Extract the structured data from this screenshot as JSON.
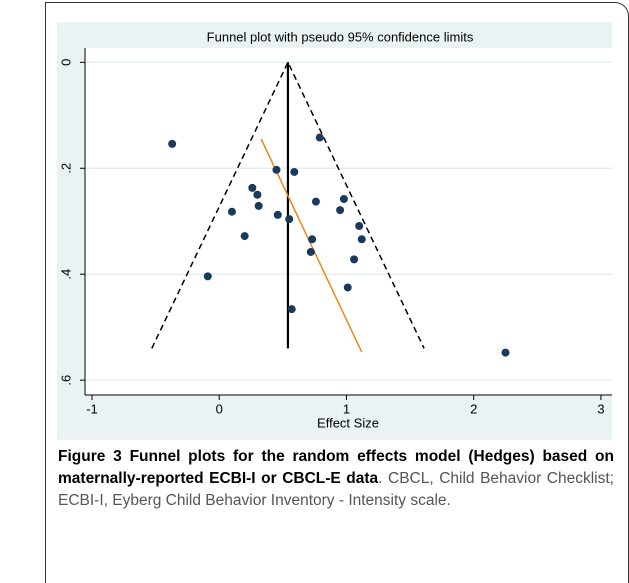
{
  "chart_data": {
    "type": "scatter",
    "title": "Funnel plot with pseudo 95% confidence limits",
    "xlabel": "Effect Size",
    "x": [
      0.79,
      -0.37,
      0.45,
      0.59,
      0.26,
      0.3,
      0.31,
      0.1,
      0.46,
      0.55,
      0.76,
      0.98,
      0.95,
      1.1,
      1.12,
      0.2,
      0.73,
      0.72,
      1.06,
      -0.09,
      1.01,
      0.57,
      2.25
    ],
    "values": [
      0.142,
      0.154,
      0.203,
      0.207,
      0.237,
      0.25,
      0.271,
      0.282,
      0.288,
      0.296,
      0.263,
      0.258,
      0.279,
      0.309,
      0.334,
      0.328,
      0.334,
      0.358,
      0.372,
      0.404,
      0.425,
      0.466,
      0.548
    ],
    "color": "#1a3a5c",
    "lines": [
      {
        "x": [
          0.54,
          0.54
        ],
        "y": [
          0,
          0.54
        ],
        "color": "#000000",
        "dash": false
      },
      {
        "x": [
          -0.53,
          0.54,
          1.61
        ],
        "y": [
          0.54,
          0,
          0.54
        ],
        "color": "#000000",
        "dash": true
      },
      {
        "x": [
          0.33,
          1.12
        ],
        "y": [
          0.145,
          0.547
        ],
        "color": "#e8891a",
        "dash": false
      }
    ],
    "xlim": [
      -1.055,
      3.087
    ],
    "xticks": [
      -1,
      0,
      1,
      2,
      3
    ],
    "ylim": [
      -0.027,
      0.628
    ],
    "y_inverted": true,
    "yticks": [
      0,
      {
        "value": 0.2,
        "label": ".2"
      },
      {
        "value": 0.4,
        "label": ".4"
      },
      {
        "value": 0.6,
        "label": ".6"
      }
    ],
    "grid": true
  },
  "caption": {
    "bold": "Figure 3 Funnel plots for the random effects model (Hedges) based on maternally-reported ECBI-I or CBCL-E data",
    "text": ". CBCL, Child Behavior Checklist; ECBI-I, Eyberg Child Behavior Inventory - Intensity scale."
  }
}
